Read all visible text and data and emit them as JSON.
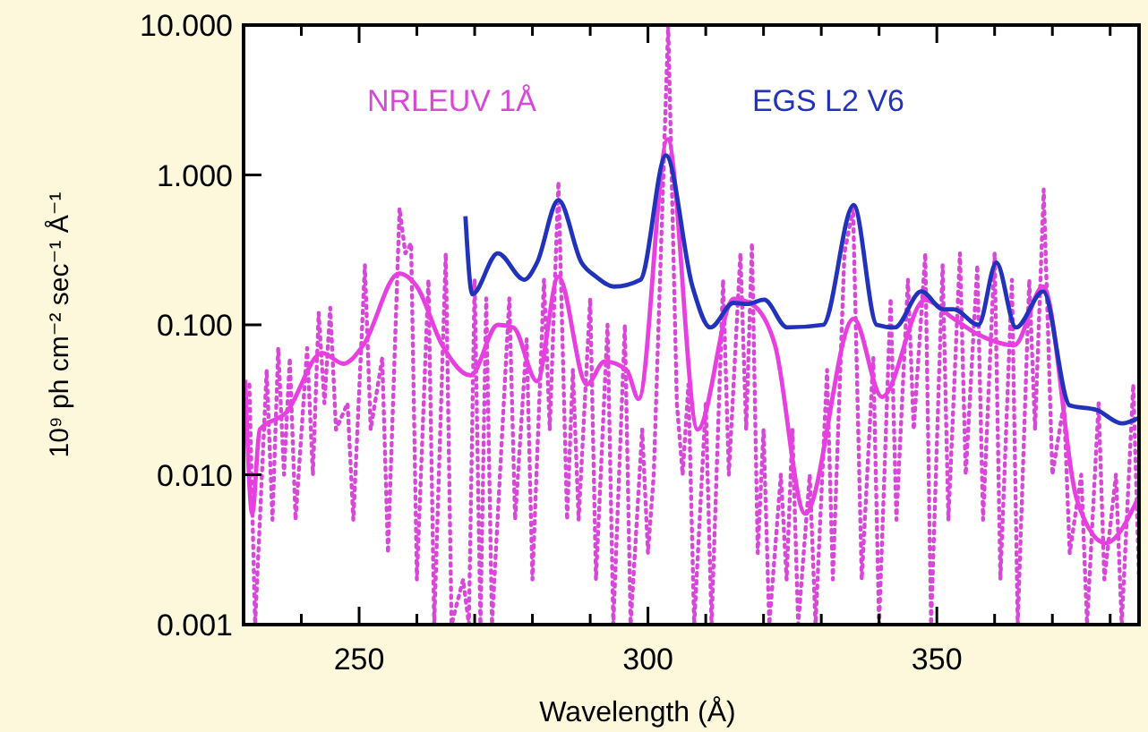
{
  "chart_data": {
    "type": "line",
    "xlabel": "Wavelength (Å)",
    "ylabel": "10⁹ ph cm⁻² sec⁻¹ Å⁻¹",
    "log": "y",
    "xlim": [
      230,
      385
    ],
    "ylim": [
      0.001,
      10
    ],
    "xticks": [
      {
        "value": 240,
        "label": null
      },
      250,
      {
        "value": 260,
        "label": null
      },
      {
        "value": 270,
        "label": null
      },
      {
        "value": 280,
        "label": null
      },
      {
        "value": 290,
        "label": null
      },
      300,
      {
        "value": 310,
        "label": null
      },
      {
        "value": 320,
        "label": null
      },
      {
        "value": 330,
        "label": null
      },
      {
        "value": 340,
        "label": null
      },
      350,
      {
        "value": 360,
        "label": null
      },
      {
        "value": 370,
        "label": null
      },
      {
        "value": 380,
        "label": null
      }
    ],
    "yticks": [
      {
        "value": 0.001,
        "label": "0.001"
      },
      {
        "value": 0.01,
        "label": "0.010"
      },
      {
        "value": 0.1,
        "label": "0.100"
      },
      {
        "value": 1,
        "label": "1.000"
      },
      {
        "value": 10,
        "label": "10.000"
      }
    ],
    "grid": false,
    "legend": "top",
    "series": [
      {
        "name": "NRLEUV 1Å",
        "color": "#d848d8",
        "line_style": "dotted",
        "x": [
          231,
          232,
          234,
          235,
          236,
          237,
          238,
          239,
          241,
          242,
          243,
          244,
          245,
          246,
          248,
          249,
          251,
          252,
          254,
          255,
          257,
          258,
          259,
          260,
          262,
          263,
          265,
          266,
          268,
          269,
          270,
          271,
          272,
          273,
          276,
          277,
          279,
          280,
          282,
          283,
          284.5,
          286,
          287,
          288,
          290,
          291,
          293,
          294,
          296,
          297,
          299,
          300,
          301,
          303.5,
          305,
          306,
          307,
          308,
          310,
          311,
          313,
          314,
          316,
          317,
          318,
          319,
          320,
          321,
          323,
          324,
          325,
          326,
          328,
          329,
          331,
          332,
          334,
          335.5,
          337,
          339,
          340,
          342,
          343,
          345,
          346,
          348,
          349,
          351,
          352,
          354,
          355,
          357,
          358,
          360,
          361,
          363,
          364,
          366,
          367,
          368.5,
          370,
          372,
          373,
          375,
          376,
          378,
          379,
          381,
          382,
          384,
          385
        ],
        "values": [
          0.04,
          0.001,
          0.05,
          0.005,
          0.07,
          0.01,
          0.06,
          0.005,
          0.07,
          0.01,
          0.12,
          0.03,
          0.13,
          0.02,
          0.03,
          0.005,
          0.25,
          0.02,
          0.06,
          0.003,
          0.6,
          0.3,
          0.35,
          0.002,
          0.2,
          0.001,
          0.3,
          0.001,
          0.002,
          0.001,
          0.2,
          0.001,
          0.15,
          0.001,
          0.15,
          0.005,
          0.08,
          0.002,
          0.2,
          0.02,
          0.9,
          0.005,
          0.05,
          0.005,
          0.15,
          0.002,
          0.1,
          0.001,
          0.1,
          0.001,
          0.02,
          0.003,
          0.01,
          10,
          0.03,
          0.01,
          0.04,
          0.001,
          0.03,
          0.001,
          0.2,
          0.01,
          0.3,
          0.02,
          0.35,
          0.003,
          0.02,
          0.001,
          0.01,
          0.002,
          0.02,
          0.001,
          0.01,
          0.001,
          0.05,
          0.002,
          0.3,
          0.6,
          0.002,
          0.06,
          0.001,
          0.15,
          0.005,
          0.2,
          0.02,
          0.3,
          0.001,
          0.25,
          0.005,
          0.3,
          0.01,
          0.25,
          0.005,
          0.3,
          0.002,
          0.2,
          0.001,
          0.2,
          0.02,
          0.8,
          0.01,
          0.03,
          0.003,
          0.01,
          0.001,
          0.03,
          0.002,
          0.01,
          0.001,
          0.04,
          0.002
        ]
      },
      {
        "color": "#e840e0",
        "line_style": "solid",
        "x": [
          230.3,
          231.5,
          232.8,
          237.4,
          243.6,
          247.3,
          250.7,
          256.9,
          260,
          264.4,
          269.3,
          274,
          276.7,
          280.8,
          284.5,
          289.4,
          292.5,
          296.3,
          298.4,
          303.4,
          308.6,
          314.8,
          317.9,
          322,
          327.2,
          335.6,
          340.5,
          347.9,
          352.9,
          357.2,
          363.4,
          368.4,
          374.3,
          379.2,
          385
        ],
        "values": [
          0.043,
          0.0055,
          0.02,
          0.026,
          0.065,
          0.055,
          0.073,
          0.22,
          0.18,
          0.073,
          0.046,
          0.1,
          0.096,
          0.042,
          0.21,
          0.04,
          0.057,
          0.05,
          0.032,
          1.73,
          0.02,
          0.149,
          0.138,
          0.073,
          0.0055,
          0.11,
          0.033,
          0.146,
          0.11,
          0.086,
          0.073,
          0.18,
          0.0067,
          0.0035,
          0.0072
        ]
      },
      {
        "name": "EGS L2 V6",
        "color": "#2233bb",
        "line_style": "solid",
        "x": [
          268.4,
          269.6,
          274,
          278.6,
          280.8,
          284.5,
          288.5,
          291,
          294.1,
          298.7,
          303.1,
          307.7,
          310.8,
          314.8,
          317.3,
          320.1,
          324.1,
          330.3,
          335.6,
          339.6,
          342.7,
          347.3,
          351.1,
          352.9,
          357.2,
          360.3,
          363.7,
          368.4,
          373,
          377.7,
          382,
          385
        ],
        "values": [
          0.53,
          0.16,
          0.3,
          0.2,
          0.26,
          0.68,
          0.26,
          0.21,
          0.18,
          0.2,
          1.35,
          0.18,
          0.096,
          0.14,
          0.138,
          0.147,
          0.096,
          0.1,
          0.63,
          0.1,
          0.096,
          0.167,
          0.127,
          0.127,
          0.1,
          0.26,
          0.096,
          0.167,
          0.029,
          0.027,
          0.022,
          0.024
        ]
      }
    ]
  }
}
